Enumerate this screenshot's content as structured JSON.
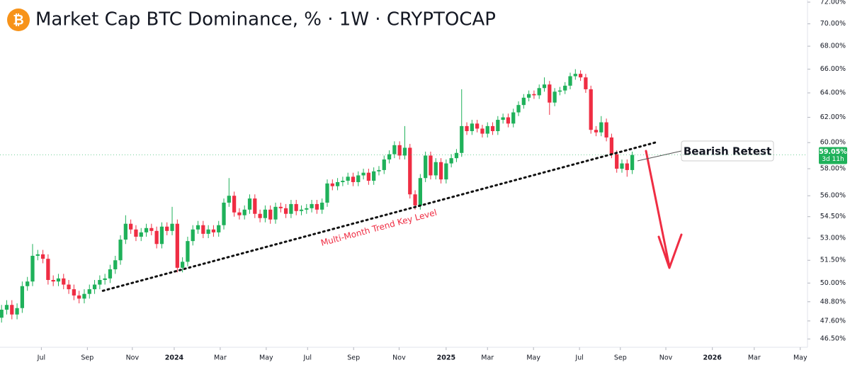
{
  "chart_data": {
    "type": "candlestick",
    "title": "Market Cap BTC Dominance, % · 1W · CRYPTOCAP",
    "symbol_icon": "₿",
    "log_scale": true,
    "grid": false,
    "up_color": "#1fb15a",
    "down_color": "#ef2d43",
    "xlim": [
      -0.3,
      155.9
    ],
    "xticks": [
      {
        "value": 7.7,
        "label": "Jul"
      },
      {
        "value": 16.6,
        "label": "Sep"
      },
      {
        "value": 25.3,
        "label": "Nov"
      },
      {
        "value": 33.4,
        "label": "2024"
      },
      {
        "value": 42.3,
        "label": "Mar"
      },
      {
        "value": 51.2,
        "label": "May"
      },
      {
        "value": 59.2,
        "label": "Jul"
      },
      {
        "value": 68.1,
        "label": "Sep"
      },
      {
        "value": 76.9,
        "label": "Nov"
      },
      {
        "value": 86.0,
        "label": "2025"
      },
      {
        "value": 94.0,
        "label": "Mar"
      },
      {
        "value": 102.9,
        "label": "May"
      },
      {
        "value": 111.8,
        "label": "Jul"
      },
      {
        "value": 119.7,
        "label": "Sep"
      },
      {
        "value": 128.5,
        "label": "Nov"
      },
      {
        "value": 137.5,
        "label": "2026"
      },
      {
        "value": 145.6,
        "label": "Mar"
      },
      {
        "value": 154.5,
        "label": "May"
      }
    ],
    "ylim": [
      46.0,
      72.2
    ],
    "yticks": [
      {
        "value": 46.5,
        "label": "46.50%"
      },
      {
        "value": 47.6,
        "label": "47.60%"
      },
      {
        "value": 48.8,
        "label": "48.80%"
      },
      {
        "value": 50,
        "label": "50.00%"
      },
      {
        "value": 51.5,
        "label": "51.50%"
      },
      {
        "value": 53,
        "label": "53.00%"
      },
      {
        "value": 54.5,
        "label": "54.50%"
      },
      {
        "value": 56,
        "label": "56.00%"
      },
      {
        "value": 58,
        "label": "58.00%"
      },
      {
        "value": 60,
        "label": "60.00%"
      },
      {
        "value": 62,
        "label": "62.00%"
      },
      {
        "value": 64,
        "label": "64.00%"
      },
      {
        "value": 66,
        "label": "66.00%"
      },
      {
        "value": 68,
        "label": "68.00%"
      },
      {
        "value": 70,
        "label": "70.00%"
      },
      {
        "value": 72,
        "label": "72.00%"
      }
    ],
    "open": [
      47.8,
      48.3,
      48.6,
      48.0,
      48.4,
      49.8,
      50.1,
      51.8,
      51.9,
      51.6,
      50.2,
      50.1,
      50.3,
      49.9,
      49.6,
      49.2,
      49.0,
      49.3,
      49.6,
      49.9,
      50.2,
      50.3,
      50.9,
      51.5,
      52.9,
      54.0,
      53.6,
      53.1,
      53.4,
      53.7,
      53.5,
      52.6,
      53.8,
      53.5,
      54.0,
      51.0,
      51.4,
      52.8,
      53.6,
      53.9,
      53.3,
      53.6,
      53.4,
      53.9,
      55.5,
      56.0,
      54.8,
      54.6,
      55.0,
      55.8,
      54.7,
      54.4,
      55.0,
      54.3,
      55.2,
      55.1,
      54.7,
      55.4,
      54.9,
      55.0,
      55.1,
      55.4,
      55.0,
      55.5,
      56.9,
      56.7,
      57.0,
      57.1,
      57.4,
      57.0,
      57.5,
      57.7,
      57.1,
      57.8,
      57.9,
      58.7,
      59.1,
      59.8,
      59.0,
      59.6,
      56.1,
      55.3,
      57.3,
      59.0,
      57.5,
      58.5,
      57.2,
      58.4,
      58.8,
      59.2,
      61.3,
      60.9,
      61.5,
      61.1,
      60.7,
      61.3,
      60.9,
      61.8,
      62.0,
      61.5,
      62.4,
      63.0,
      63.6,
      63.9,
      63.8,
      64.4,
      64.7,
      63.2,
      64.1,
      64.2,
      64.6,
      65.4,
      65.6,
      65.3,
      64.3,
      61.0,
      60.8,
      61.6,
      60.4,
      59.1,
      58.0,
      58.4,
      57.9
    ],
    "high": [
      48.6,
      48.9,
      48.9,
      48.7,
      50.1,
      50.4,
      52.6,
      52.2,
      52.2,
      51.9,
      50.5,
      50.6,
      50.6,
      50.2,
      49.9,
      49.5,
      49.6,
      49.9,
      50.2,
      50.5,
      50.6,
      51.2,
      51.8,
      53.2,
      54.6,
      54.3,
      53.9,
      53.7,
      54.0,
      54.0,
      53.8,
      54.1,
      54.1,
      55.2,
      54.3,
      51.7,
      53.1,
      53.9,
      54.2,
      54.2,
      53.9,
      53.9,
      54.2,
      55.8,
      57.3,
      56.3,
      55.1,
      55.3,
      56.1,
      56.1,
      55.0,
      55.3,
      55.3,
      55.5,
      55.5,
      55.4,
      55.7,
      55.7,
      55.3,
      55.4,
      55.7,
      55.7,
      55.8,
      57.2,
      57.2,
      57.3,
      57.4,
      57.7,
      57.7,
      57.8,
      58.0,
      58.0,
      58.1,
      58.2,
      59.0,
      59.4,
      60.1,
      60.1,
      61.3,
      59.9,
      56.4,
      57.6,
      59.3,
      59.3,
      58.8,
      58.8,
      58.7,
      59.1,
      59.5,
      64.3,
      61.6,
      61.8,
      61.8,
      61.4,
      61.6,
      61.6,
      62.1,
      62.3,
      62.3,
      62.7,
      63.3,
      63.9,
      64.2,
      64.2,
      64.7,
      65.3,
      65.0,
      64.4,
      64.5,
      64.9,
      65.7,
      66.0,
      65.9,
      65.6,
      64.6,
      61.3,
      62.1,
      61.9,
      60.7,
      59.4,
      58.7,
      58.7,
      59.3
    ],
    "low": [
      47.5,
      48.0,
      47.7,
      47.7,
      48.1,
      49.5,
      49.8,
      51.5,
      51.3,
      49.9,
      49.8,
      49.8,
      49.6,
      49.3,
      48.9,
      48.7,
      48.7,
      49.0,
      49.3,
      49.6,
      49.9,
      50.0,
      50.6,
      51.2,
      52.6,
      53.3,
      52.8,
      52.8,
      53.1,
      53.2,
      52.3,
      52.3,
      53.2,
      53.2,
      50.7,
      50.7,
      51.1,
      52.5,
      53.3,
      53.0,
      53.0,
      53.1,
      53.1,
      53.6,
      55.2,
      54.5,
      54.3,
      54.3,
      54.7,
      54.4,
      54.1,
      54.1,
      54.0,
      54.0,
      54.8,
      54.4,
      54.4,
      54.6,
      54.6,
      54.7,
      54.8,
      54.7,
      54.7,
      55.2,
      56.4,
      56.4,
      56.7,
      56.8,
      56.7,
      56.7,
      57.2,
      56.8,
      56.8,
      57.5,
      57.6,
      58.4,
      58.8,
      58.7,
      58.7,
      55.8,
      55.0,
      55.0,
      57.0,
      57.2,
      57.2,
      56.9,
      56.9,
      58.1,
      58.5,
      58.9,
      60.6,
      60.6,
      60.8,
      60.4,
      60.4,
      60.6,
      60.6,
      61.5,
      61.2,
      61.2,
      62.1,
      62.7,
      63.3,
      63.5,
      63.5,
      64.1,
      62.2,
      62.9,
      63.8,
      63.9,
      64.3,
      65.1,
      65.0,
      64.0,
      60.7,
      60.5,
      60.5,
      60.1,
      58.8,
      57.7,
      57.7,
      57.4,
      57.6
    ],
    "close": [
      48.3,
      48.6,
      48.0,
      48.4,
      49.8,
      50.1,
      51.8,
      51.9,
      51.6,
      50.2,
      50.1,
      50.3,
      49.9,
      49.6,
      49.2,
      49.0,
      49.3,
      49.6,
      49.9,
      50.2,
      50.3,
      50.9,
      51.5,
      52.9,
      54.0,
      53.6,
      53.1,
      53.4,
      53.7,
      53.5,
      52.6,
      53.8,
      53.5,
      54.0,
      51.0,
      51.4,
      52.8,
      53.6,
      53.9,
      53.3,
      53.6,
      53.4,
      53.9,
      55.5,
      56.0,
      54.8,
      54.6,
      55.0,
      55.8,
      54.7,
      54.4,
      55.0,
      54.3,
      55.2,
      55.1,
      54.7,
      55.4,
      54.9,
      55.0,
      55.1,
      55.4,
      55.0,
      55.5,
      56.9,
      56.7,
      57.0,
      57.1,
      57.4,
      57.0,
      57.5,
      57.7,
      57.1,
      57.8,
      57.9,
      58.7,
      59.1,
      59.8,
      59.0,
      59.6,
      56.1,
      55.3,
      57.3,
      59.0,
      57.5,
      58.5,
      57.2,
      58.4,
      58.8,
      59.2,
      61.3,
      60.9,
      61.5,
      61.1,
      60.7,
      61.3,
      60.9,
      61.8,
      62.0,
      61.5,
      62.4,
      63.0,
      63.6,
      63.9,
      63.8,
      64.4,
      64.7,
      63.2,
      64.1,
      64.2,
      64.6,
      65.4,
      65.6,
      65.3,
      64.3,
      61.0,
      60.8,
      61.6,
      60.4,
      59.1,
      58.0,
      58.4,
      57.9,
      59.05
    ],
    "last_price": {
      "value": 59.05,
      "label": "59.05%"
    },
    "countdown": "3d 11h",
    "trendline": {
      "label": "Multi-Month Trend Key Level",
      "x": [
        19.6,
        126.4
      ],
      "y": [
        49.5,
        60.0
      ],
      "color": "#ef2d43"
    },
    "callout": "Bearish Retest"
  }
}
